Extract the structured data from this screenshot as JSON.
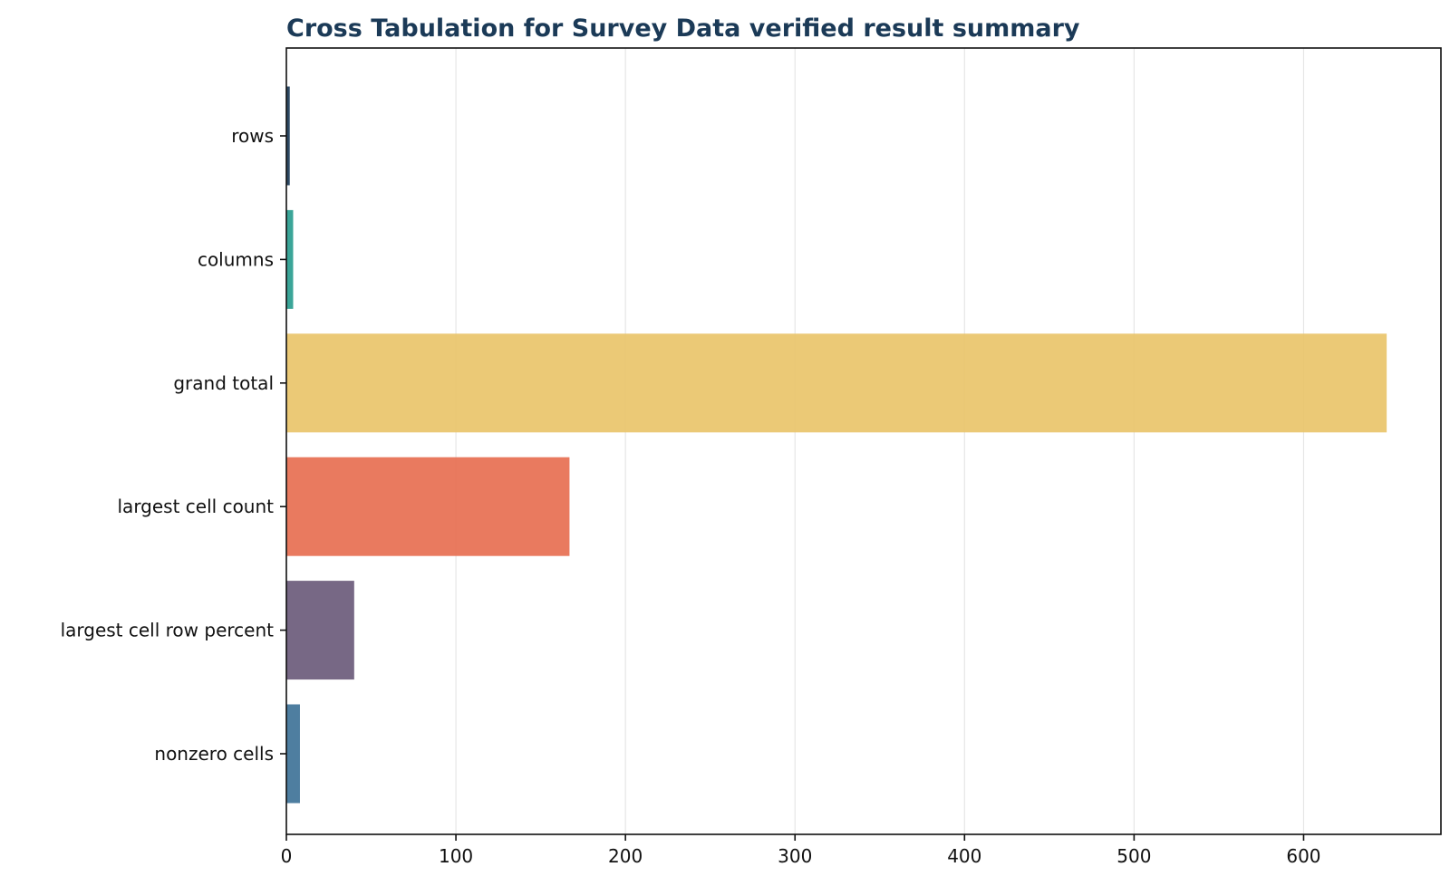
{
  "chart_data": {
    "type": "bar",
    "orientation": "horizontal",
    "title": "Cross Tabulation for Survey Data verified result summary",
    "xlabel": "",
    "ylabel": "",
    "categories": [
      "rows",
      "columns",
      "grand total",
      "largest cell count",
      "largest cell row percent",
      "nonzero cells"
    ],
    "values": [
      2,
      4,
      649,
      167,
      40,
      8
    ],
    "colors": [
      "#1b3a57",
      "#2a9d8f",
      "#e9c46a",
      "#e76f51",
      "#6b5b7b",
      "#3f7398"
    ],
    "xlim": [
      0,
      681
    ],
    "xticks": [
      0,
      100,
      200,
      300,
      400,
      500,
      600
    ],
    "grid": "x-only",
    "legend": "none",
    "title_color": "#1b3a57"
  }
}
